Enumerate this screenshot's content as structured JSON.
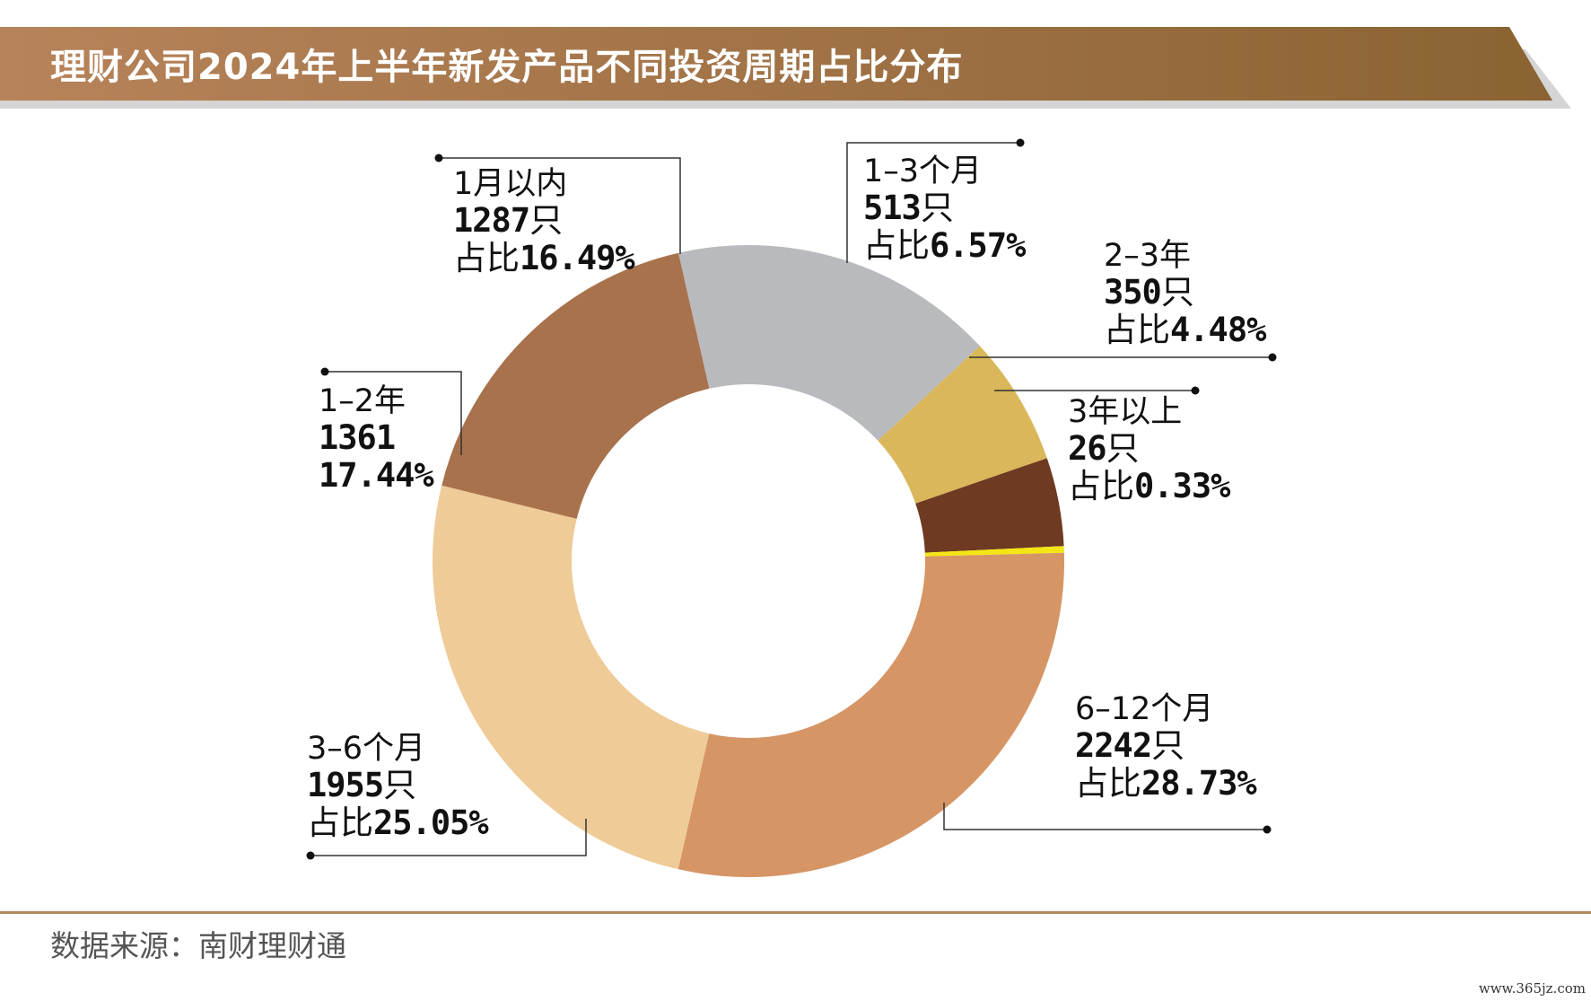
{
  "title": "理财公司2024年上半年新发产品不同投资周期占比分布",
  "source": "数据来源：南财理财通",
  "watermark": "www.365jz.com",
  "colors": {
    "banner_start": "#b7835a",
    "banner_end": "#8b6333",
    "banner_shadow": "#d5d5d5",
    "leader_line": "#333333"
  },
  "chart_data": {
    "type": "pie",
    "donut": true,
    "title": "理财公司2024年上半年新发产品不同投资周期占比分布",
    "slices": [
      {
        "category": "1月以内",
        "count": 1287,
        "percent": 16.49,
        "color": "#b9babd",
        "labels": {
          "name": "1月以内",
          "count": "1287",
          "unit": "只",
          "pct_prefix": "占比",
          "pct": "16.49%"
        }
      },
      {
        "category": "1-3个月",
        "count": 513,
        "percent": 6.57,
        "color": "#d9b75a",
        "labels": {
          "name": "1–3个月",
          "count": "513",
          "unit": "只",
          "pct_prefix": "占比",
          "pct": "6.57%"
        }
      },
      {
        "category": "2-3年",
        "count": 350,
        "percent": 4.48,
        "color": "#6f3a22",
        "labels": {
          "name": "2–3年",
          "count": "350",
          "unit": "只",
          "pct_prefix": "占比",
          "pct": "4.48%"
        }
      },
      {
        "category": "3年以上",
        "count": 26,
        "percent": 0.33,
        "color": "#f3e614",
        "labels": {
          "name": "3年以上",
          "count": "26",
          "unit": "只",
          "pct_prefix": "占比",
          "pct": "0.33%"
        }
      },
      {
        "category": "6-12个月",
        "count": 2242,
        "percent": 28.73,
        "color": "#d69565",
        "labels": {
          "name": "6–12个月",
          "count": "2242",
          "unit": "只",
          "pct_prefix": "占比",
          "pct": "28.73%"
        }
      },
      {
        "category": "3-6个月",
        "count": 1955,
        "percent": 25.05,
        "color": "#efcb98",
        "labels": {
          "name": "3–6个月",
          "count": "1955",
          "unit": "只",
          "pct_prefix": "占比",
          "pct": "25.05%"
        }
      },
      {
        "category": "1-2年",
        "count": 1361,
        "percent": 17.44,
        "color": "#a8724d",
        "labels": {
          "name": "1–2年",
          "count": "1361",
          "unit": "",
          "pct_prefix": "",
          "pct": "17.44%"
        }
      }
    ]
  }
}
